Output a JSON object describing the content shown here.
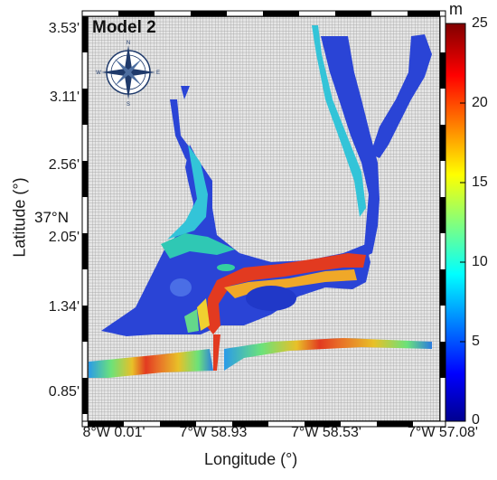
{
  "title": "Model 2",
  "axes": {
    "xlabel": "Longitude (°)",
    "ylabel": "Latitude (°)",
    "xticks": [
      "8°W 0.01'",
      "7°W 58.93",
      "7°W 58.53'",
      "7°W 57.08'"
    ],
    "yticks": [
      "3.53'",
      "3.11'",
      "2.56'",
      "2.05'",
      "1.34'",
      "0.85'"
    ],
    "lat_prefix": "37°N"
  },
  "colorbar": {
    "unit": "m",
    "ticks": [
      "25",
      "20",
      "15",
      "10",
      "5",
      "0"
    ],
    "range": [
      0,
      25
    ]
  },
  "compass": {
    "icon": "compass-rose-icon",
    "labels": [
      "N",
      "E",
      "S",
      "W"
    ]
  },
  "colors": {
    "grid_bg": "#e4e4e4",
    "grid_line": "#9b9b9b",
    "water_shallow": "#1f3fd0",
    "water_mid": "#2fb9e0",
    "water_deep": "#d22a1c"
  }
}
